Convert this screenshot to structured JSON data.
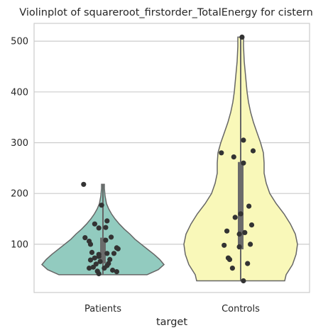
{
  "chart_data": {
    "type": "violin",
    "title": "Violinplot of squareroot_firstorder_TotalEnergy for cistern",
    "xlabel": "target",
    "ylabel": "",
    "categories": [
      "Patients",
      "Controls"
    ],
    "yticks": [
      100,
      200,
      300,
      400,
      500
    ],
    "ylim": [
      5,
      535
    ],
    "grid": true,
    "colors": {
      "Patients": "#92cbbf",
      "Controls": "#f9f8b9",
      "outline": "#666666",
      "points": "#333333",
      "grid": "#cccccc"
    },
    "series": [
      {
        "category": "Patients",
        "min": 40,
        "max": 218,
        "q1": 62,
        "median": 80,
        "q3": 113,
        "density": [
          [
            40,
            62
          ],
          [
            50,
            78
          ],
          [
            60,
            86
          ],
          [
            70,
            80
          ],
          [
            80,
            72
          ],
          [
            90,
            63
          ],
          [
            100,
            54
          ],
          [
            110,
            45
          ],
          [
            120,
            38
          ],
          [
            130,
            30
          ],
          [
            140,
            23
          ],
          [
            150,
            17
          ],
          [
            160,
            12
          ],
          [
            170,
            8
          ],
          [
            180,
            5
          ],
          [
            195,
            3
          ],
          [
            210,
            2
          ],
          [
            218,
            2
          ]
        ],
        "points": [
          [
            -0.14,
            218
          ],
          [
            -0.01,
            177
          ],
          [
            -0.06,
            140
          ],
          [
            -0.03,
            132
          ],
          [
            0.02,
            133
          ],
          [
            0.03,
            146
          ],
          [
            -0.13,
            113
          ],
          [
            0.06,
            114
          ],
          [
            -0.1,
            106
          ],
          [
            0.02,
            108
          ],
          [
            -0.09,
            100
          ],
          [
            0.1,
            93
          ],
          [
            0.11,
            91
          ],
          [
            -0.08,
            84
          ],
          [
            -0.03,
            80
          ],
          [
            0.03,
            82
          ],
          [
            0.08,
            82
          ],
          [
            -0.03,
            76
          ],
          [
            -0.06,
            73
          ],
          [
            0.05,
            70
          ],
          [
            -0.09,
            69
          ],
          [
            -0.02,
            66
          ],
          [
            0.04,
            62
          ],
          [
            -0.05,
            61
          ],
          [
            0.03,
            58
          ],
          [
            -0.07,
            55
          ],
          [
            0.01,
            53
          ],
          [
            -0.1,
            53
          ],
          [
            0.07,
            49
          ],
          [
            -0.04,
            47
          ],
          [
            0.1,
            46
          ],
          [
            -0.03,
            42
          ]
        ]
      },
      {
        "category": "Controls",
        "min": 28,
        "max": 508,
        "q1": 90,
        "median": 133,
        "q3": 262,
        "density": [
          [
            28,
            62
          ],
          [
            40,
            64
          ],
          [
            60,
            73
          ],
          [
            80,
            78
          ],
          [
            100,
            80
          ],
          [
            120,
            77
          ],
          [
            140,
            70
          ],
          [
            160,
            61
          ],
          [
            180,
            50
          ],
          [
            200,
            41
          ],
          [
            220,
            36
          ],
          [
            240,
            33
          ],
          [
            260,
            33
          ],
          [
            280,
            32
          ],
          [
            300,
            28
          ],
          [
            320,
            23
          ],
          [
            340,
            18
          ],
          [
            360,
            14
          ],
          [
            380,
            11
          ],
          [
            400,
            9
          ],
          [
            430,
            7
          ],
          [
            460,
            5
          ],
          [
            490,
            4
          ],
          [
            508,
            4
          ]
        ],
        "points": [
          [
            0.01,
            508
          ],
          [
            0.02,
            305
          ],
          [
            0.09,
            284
          ],
          [
            -0.14,
            280
          ],
          [
            -0.05,
            272
          ],
          [
            0.02,
            260
          ],
          [
            0.06,
            175
          ],
          [
            0.0,
            160
          ],
          [
            -0.04,
            153
          ],
          [
            0.08,
            138
          ],
          [
            -0.1,
            126
          ],
          [
            0.03,
            123
          ],
          [
            -0.01,
            120
          ],
          [
            0.07,
            100
          ],
          [
            -0.12,
            98
          ],
          [
            -0.01,
            95
          ],
          [
            -0.09,
            73
          ],
          [
            -0.08,
            70
          ],
          [
            0.05,
            62
          ],
          [
            -0.06,
            53
          ],
          [
            0.02,
            28
          ]
        ]
      }
    ]
  }
}
